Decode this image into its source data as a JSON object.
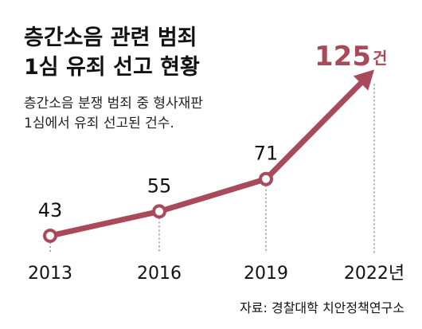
{
  "chart_data": {
    "type": "line",
    "title_lines": [
      "층간소음 관련 범죄",
      "1심 유죄 선고 현황"
    ],
    "subtitle_lines": [
      "층간소음 분쟁 범죄 중 형사재판",
      "1심에서 유죄 선고된 건수."
    ],
    "categories": [
      "2013",
      "2016",
      "2019",
      "2022년"
    ],
    "values": [
      43,
      55,
      71,
      125
    ],
    "value_labels": [
      "43",
      "55",
      "71",
      "125"
    ],
    "highlight_unit": "건",
    "source": "자료: 경찰대학 치안정책연구소",
    "ylim": [
      30,
      135
    ],
    "grid": false,
    "line_color": "#a84a5a",
    "marker_fill": "#ffffff",
    "guide_color": "#555555"
  }
}
